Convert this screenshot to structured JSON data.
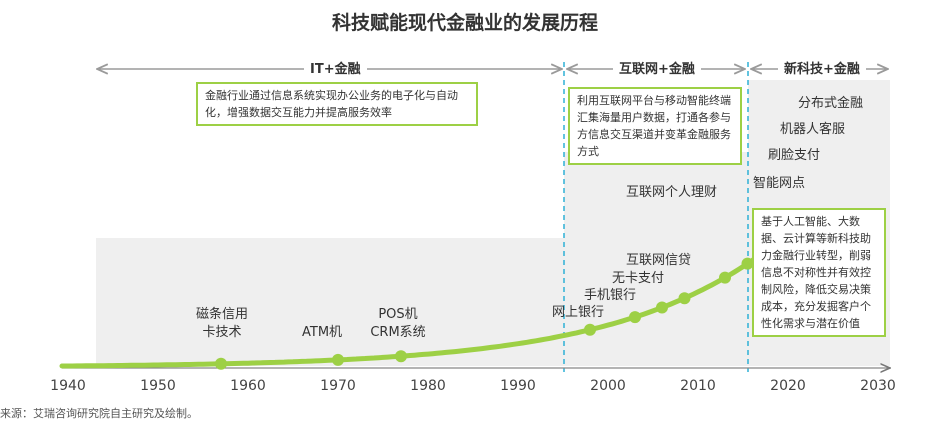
{
  "title": "科技赋能现代金融业的发展历程",
  "phases": [
    {
      "name": "IT+金融",
      "description": "金融行业通过信息系统实现办公业务的电子化与自动化，增强数据交互能力并提高服务效率"
    },
    {
      "name": "互联网+金融",
      "description": "利用互联网平台与移动智能终端汇集海量用户数据，打通各参与方信息交互渠道并变革金融服务方式"
    },
    {
      "name": "新科技+金融",
      "description": "基于人工智能、大数据、云计算等新科技助力金融行业转型，削弱信息不对称性并有效控制风险，降低交易决策成本，充分发掘客户个性化需求与潜在价值"
    }
  ],
  "milestones": [
    {
      "label_lines": [
        "磁条信用",
        "卡技术"
      ],
      "year": 1957
    },
    {
      "label_lines": [
        "ATM机"
      ],
      "year": 1970
    },
    {
      "label_lines": [
        "POS机",
        "CRM系统"
      ],
      "year": 1977
    },
    {
      "label_lines": [
        "网上银行"
      ],
      "year": 1998
    },
    {
      "label_lines": [
        "手机银行"
      ],
      "year": 2003
    },
    {
      "label_lines": [
        "无卡支付"
      ],
      "year": 2006
    },
    {
      "label_lines": [
        "互联网信贷"
      ],
      "year": 2008.5
    },
    {
      "label_lines": [
        "互联网个人理财"
      ],
      "year": 2013
    },
    {
      "label_lines": [
        "智能网点"
      ],
      "year": 2015.5
    },
    {
      "label_lines": [
        "刷脸支付"
      ],
      "year": 2017
    },
    {
      "label_lines": [
        "机器人客服"
      ],
      "year": 2018
    },
    {
      "label_lines": [
        "分布式金融"
      ],
      "year": 2019
    }
  ],
  "axis_ticks": [
    "1940",
    "1950",
    "1960",
    "1970",
    "1980",
    "1990",
    "2000",
    "2010",
    "2020",
    "2030"
  ],
  "source": "来源：艾瑞咨询研究院自主研究及绘制。",
  "colors": {
    "accent": "#9dd045",
    "divider": "#2fb0d6",
    "arrow": "#9a9a9a",
    "panel": "#efefef"
  }
}
